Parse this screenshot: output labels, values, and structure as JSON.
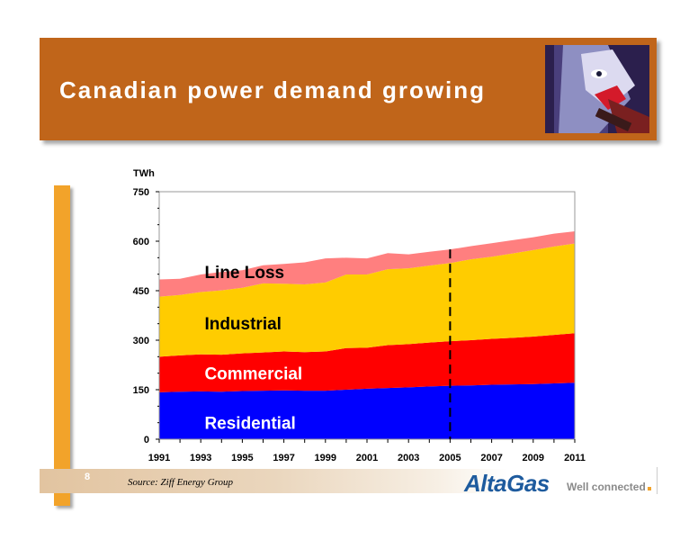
{
  "slide": {
    "title": "Canadian power demand growing",
    "page_number": "8",
    "source": "Source: Ziff Energy Group",
    "logo_text": "AltaGas",
    "tagline": "Well connected"
  },
  "colors": {
    "banner": "#c0651a",
    "accent_bar": "#f2a32a",
    "residential": "#0000ff",
    "commercial": "#ff0000",
    "industrial": "#ffcc00",
    "line_loss": "#ff7f7f"
  },
  "chart_data": {
    "type": "area",
    "stacked": true,
    "ylabel": "TWh",
    "xlabel": "",
    "ylim": [
      0,
      750
    ],
    "yticks": [
      0,
      150,
      300,
      450,
      600,
      750
    ],
    "xticks": [
      "1991",
      "1993",
      "1995",
      "1997",
      "1999",
      "2001",
      "2003",
      "2005",
      "2007",
      "2009",
      "2011"
    ],
    "x": [
      1991,
      1992,
      1993,
      1994,
      1995,
      1996,
      1997,
      1998,
      1999,
      2000,
      2001,
      2002,
      2003,
      2004,
      2005,
      2006,
      2007,
      2008,
      2009,
      2010,
      2011
    ],
    "forecast_start": 2005,
    "grid": false,
    "series": [
      {
        "name": "Residential",
        "color": "#0000ff",
        "values": [
          142,
          144,
          145,
          144,
          146,
          147,
          148,
          147,
          147,
          150,
          153,
          155,
          157,
          160,
          162,
          163,
          165,
          166,
          167,
          169,
          171
        ]
      },
      {
        "name": "Commercial",
        "color": "#ff0000",
        "values": [
          108,
          110,
          112,
          112,
          114,
          116,
          118,
          117,
          119,
          126,
          124,
          130,
          131,
          133,
          135,
          137,
          139,
          141,
          144,
          147,
          150
        ]
      },
      {
        "name": "Industrial",
        "color": "#ffcc00",
        "values": [
          182,
          183,
          189,
          195,
          199,
          209,
          205,
          205,
          209,
          223,
          222,
          230,
          230,
          233,
          237,
          245,
          249,
          256,
          262,
          268,
          272
        ]
      },
      {
        "name": "Line Loss",
        "color": "#ff7f7f",
        "values": [
          52,
          49,
          53,
          56,
          53,
          55,
          60,
          67,
          73,
          51,
          49,
          49,
          42,
          42,
          41,
          40,
          41,
          40,
          39,
          39,
          37
        ]
      }
    ]
  }
}
